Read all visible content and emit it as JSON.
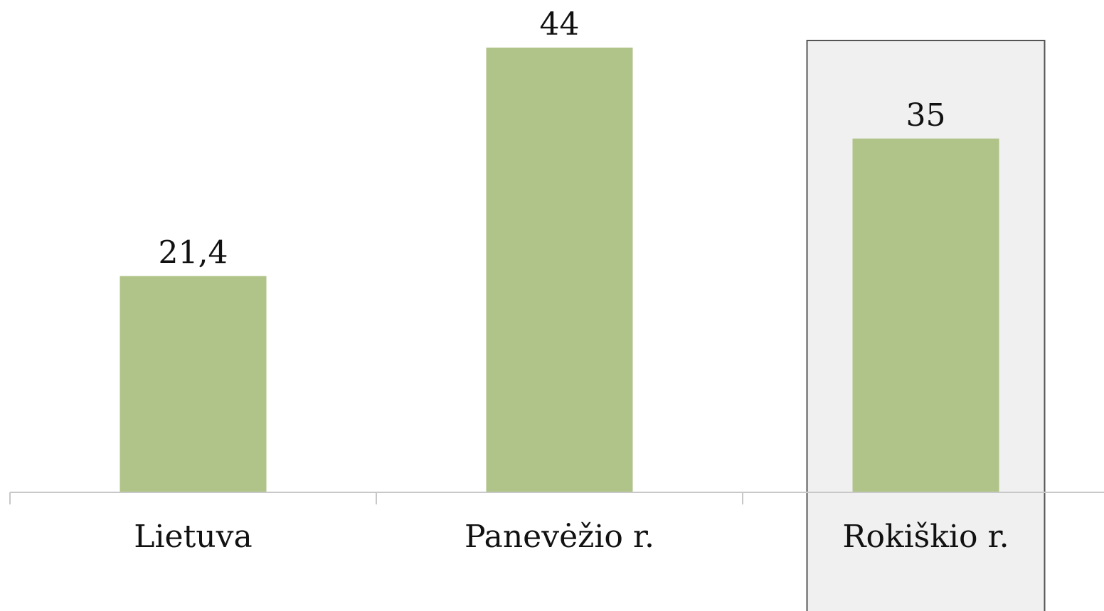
{
  "chart_data": {
    "type": "bar",
    "categories": [
      "Lietuva",
      "Panevėžio r.",
      "Rokiškio r."
    ],
    "values": [
      21.4,
      44,
      35
    ],
    "value_labels": [
      "21,4",
      "44",
      "35"
    ],
    "ylim": [
      0,
      45
    ],
    "grid": false,
    "highlighted_category": "Rokiškio r.",
    "colors": {
      "bar": "#b0c388",
      "axis": "#c8c8c8",
      "highlight_fill": "#f0f0f0",
      "highlight_border": "#555555"
    }
  }
}
